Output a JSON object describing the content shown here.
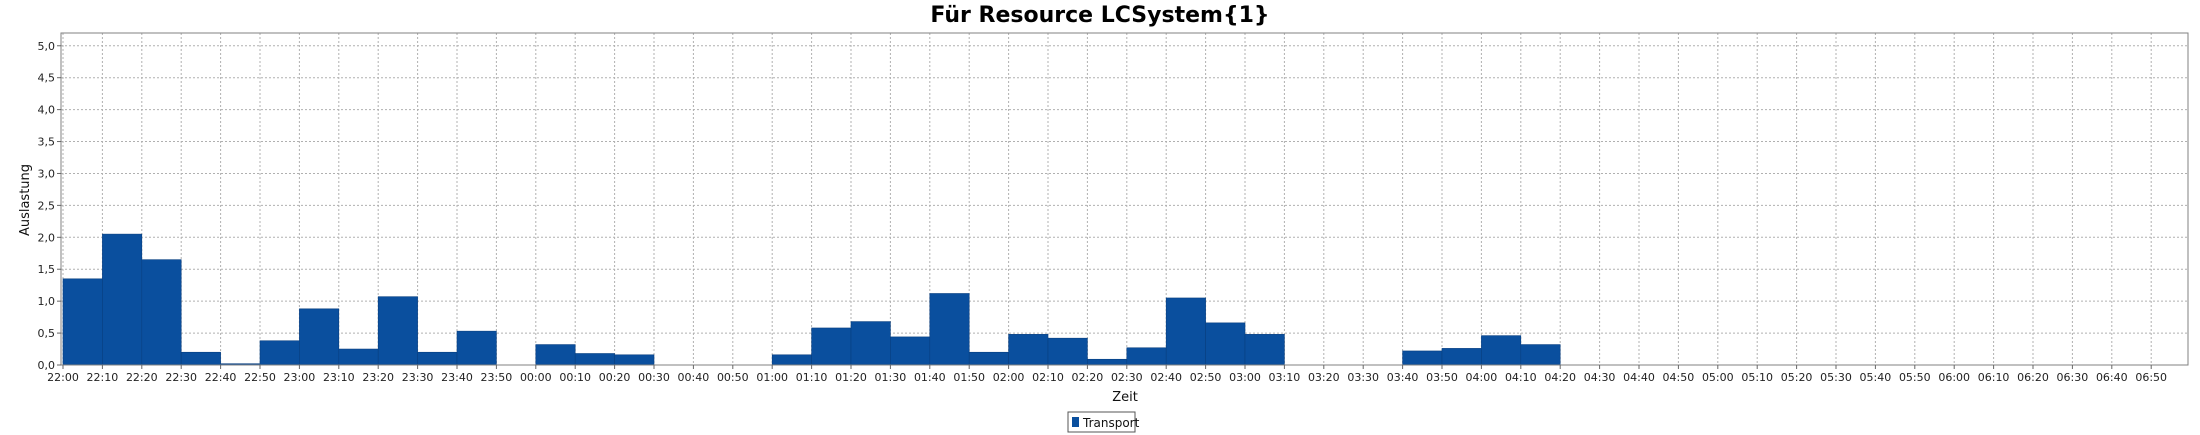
{
  "chart_data": {
    "type": "bar",
    "title": "Für Resource LCSystem{1}",
    "xlabel": "Zeit",
    "ylabel": "Auslastung",
    "ylim": [
      0,
      5.2
    ],
    "yticks": [
      "0,0",
      "0,5",
      "1,0",
      "1,5",
      "2,0",
      "2,5",
      "3,0",
      "3,5",
      "4,0",
      "4,5",
      "5,0"
    ],
    "grid": true,
    "legend_position": "bottom-center",
    "colors": {
      "bar": "#0a4f9e",
      "bar_edge": "#083f80",
      "grid": "#b0b0b0"
    },
    "categories": [
      "22:00",
      "22:10",
      "22:20",
      "22:30",
      "22:40",
      "22:50",
      "23:00",
      "23:10",
      "23:20",
      "23:30",
      "23:40",
      "23:50",
      "00:00",
      "00:10",
      "00:20",
      "00:30",
      "00:40",
      "00:50",
      "01:00",
      "01:10",
      "01:20",
      "01:30",
      "01:40",
      "01:50",
      "02:00",
      "02:10",
      "02:20",
      "02:30",
      "02:40",
      "02:50",
      "03:00",
      "03:10",
      "03:20",
      "03:30",
      "03:40",
      "03:50",
      "04:00",
      "04:10",
      "04:20",
      "04:30",
      "04:40",
      "04:50",
      "05:00",
      "05:10",
      "05:20",
      "05:30",
      "05:40",
      "05:50",
      "06:00",
      "06:10",
      "06:20",
      "06:30",
      "06:40",
      "06:50"
    ],
    "series": [
      {
        "name": "Transport",
        "values": [
          1.35,
          2.05,
          1.65,
          0.2,
          0.02,
          0.38,
          0.88,
          0.25,
          1.07,
          0.2,
          0.53,
          0,
          0.32,
          0.18,
          0.16,
          0,
          0,
          0,
          0.16,
          0.58,
          0.68,
          0.44,
          1.12,
          0.2,
          0.48,
          0.42,
          0.09,
          0.27,
          1.05,
          0.66,
          0.48,
          0,
          0,
          0,
          0.22,
          0.26,
          0.46,
          0.32,
          0,
          0,
          0,
          0,
          0,
          0,
          0,
          0,
          0,
          0,
          0,
          0,
          0,
          0,
          0,
          0
        ]
      }
    ]
  }
}
